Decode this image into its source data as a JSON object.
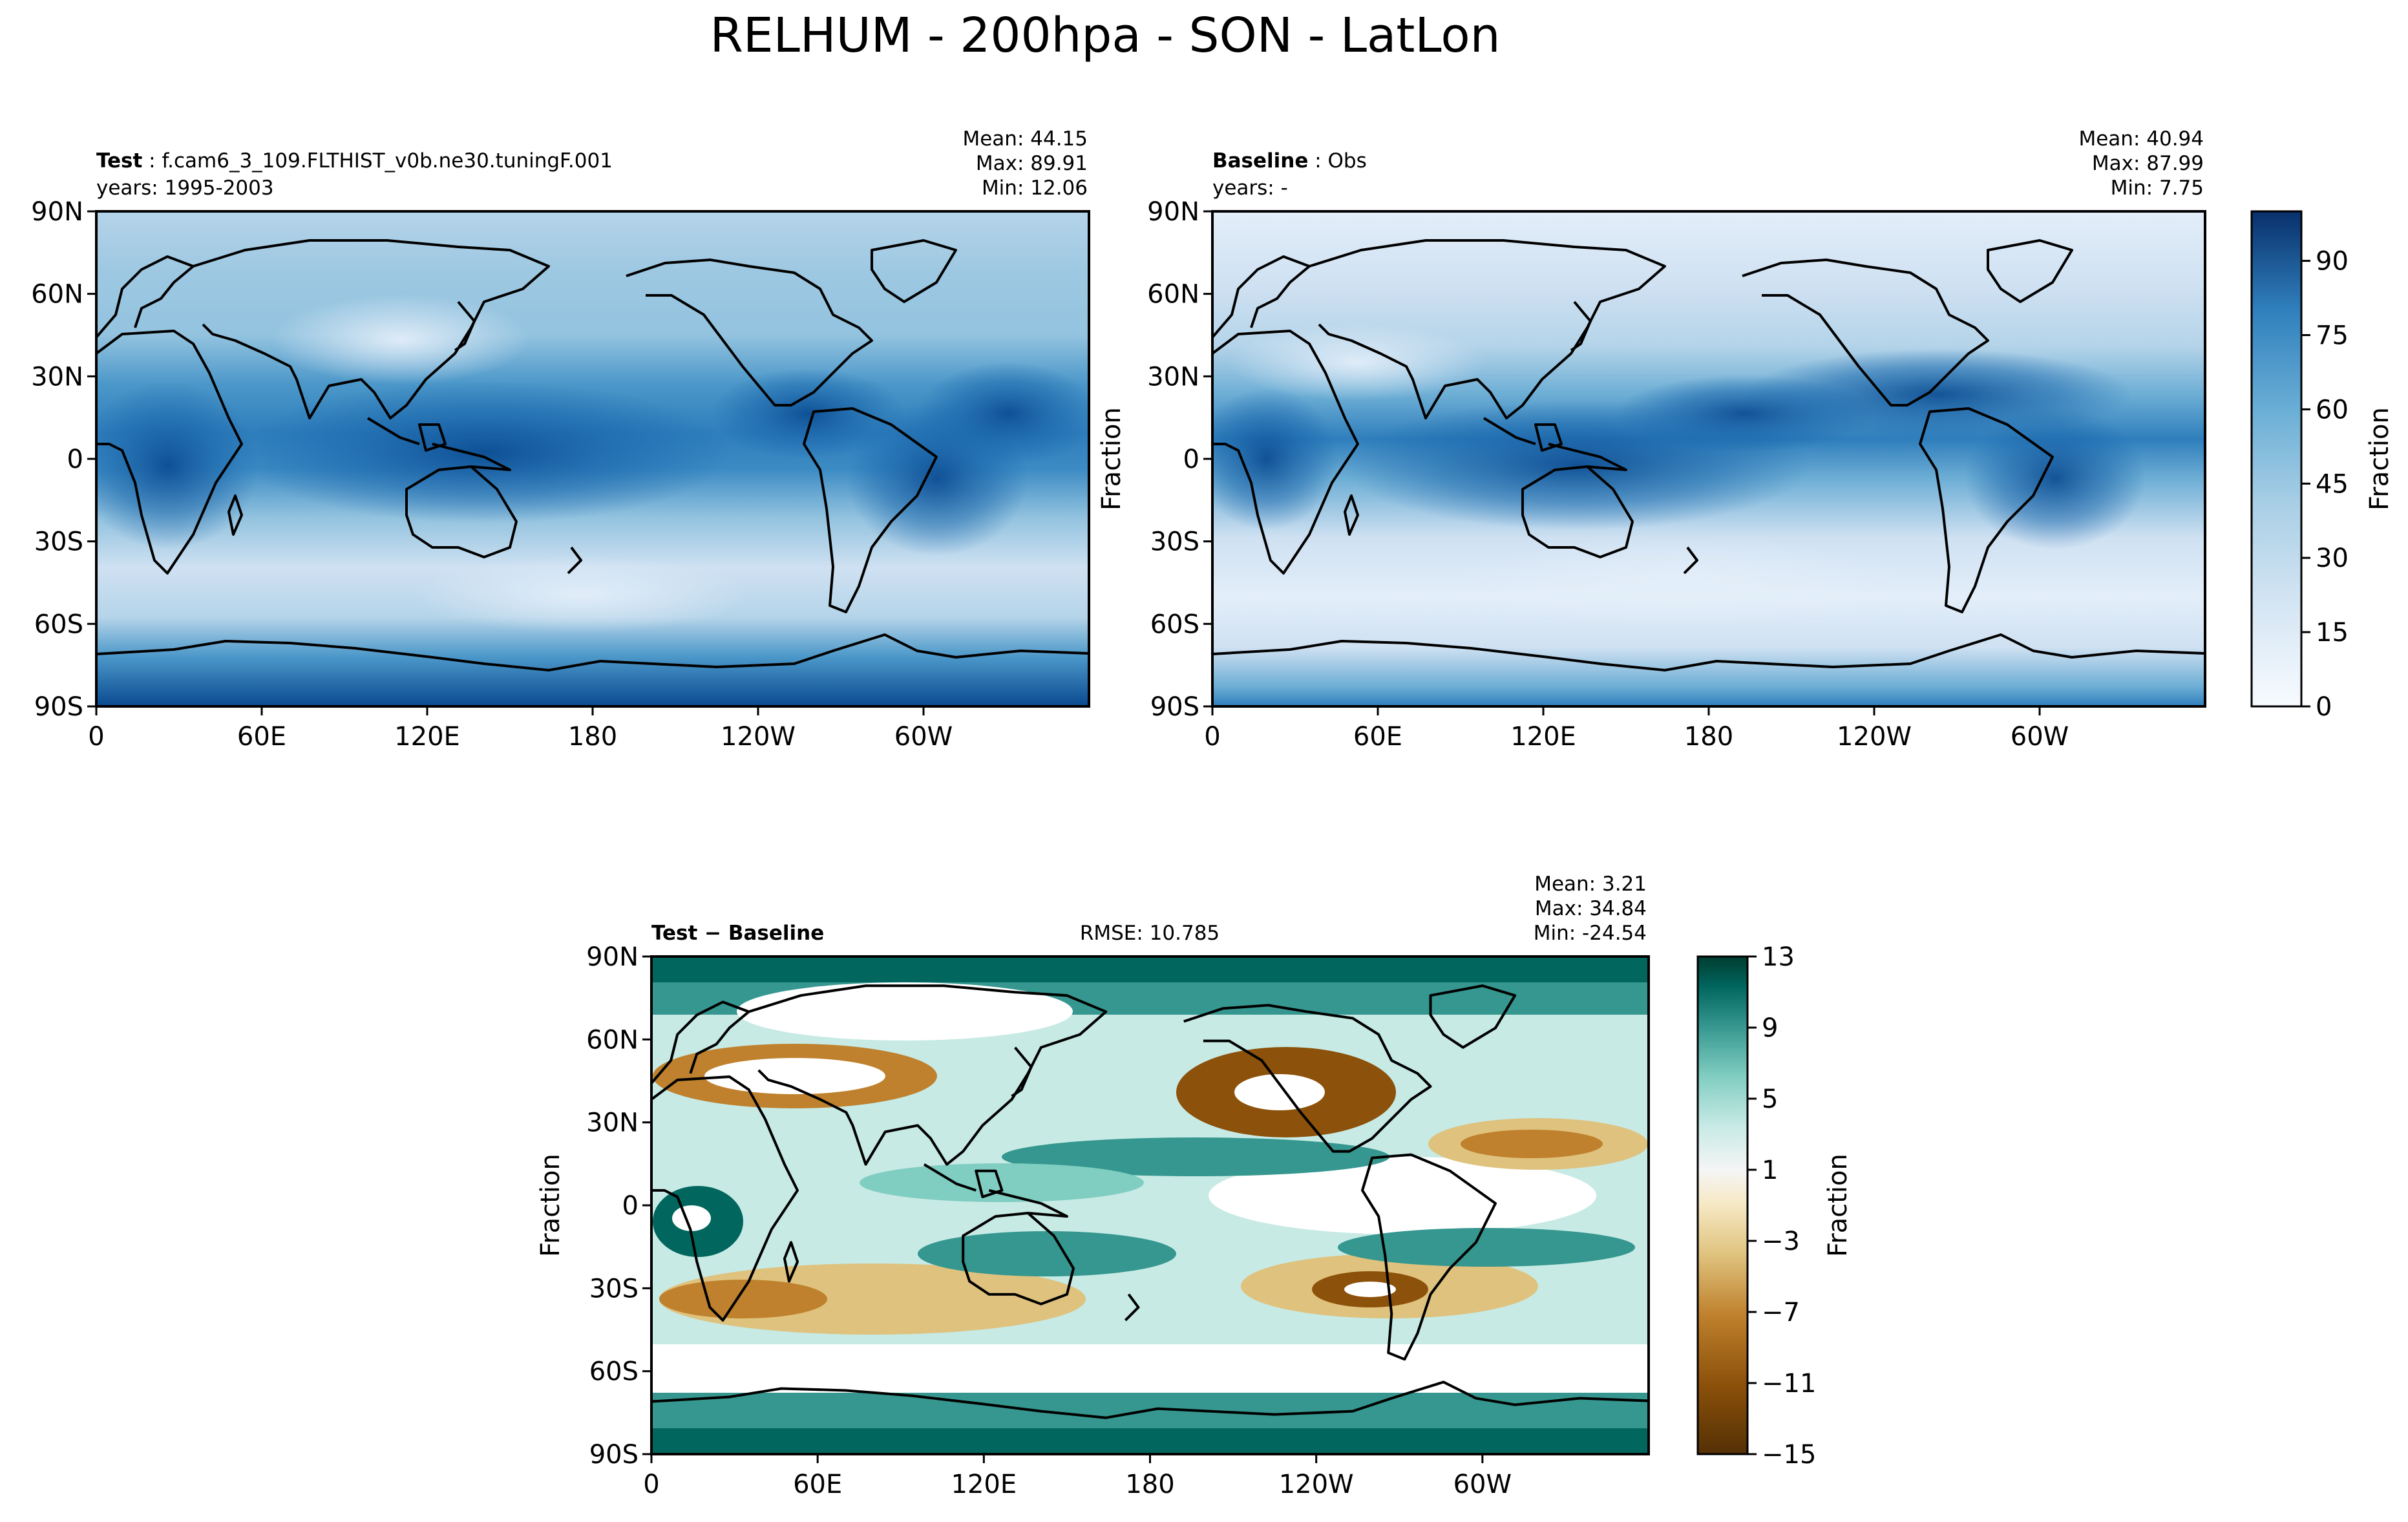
{
  "chart_data": [
    {
      "type": "heatmap",
      "panel": "test",
      "title_bold": "Test",
      "title_sep": " : ",
      "title_rest": "f.cam6_3_109.FLTHIST_v0b.ne30.tuningF.001",
      "years": "years: 1995-2003",
      "stats": {
        "mean": "Mean: 44.15",
        "max": "Max: 89.91",
        "min": "Min: 12.06"
      },
      "xticks": [
        "0",
        "60E",
        "120E",
        "180",
        "120W",
        "60W"
      ],
      "yticks": [
        "90N",
        "60N",
        "30N",
        "0",
        "30S",
        "60S",
        "90S"
      ],
      "ylabel": "",
      "colormap": "Blues",
      "clim": [
        0,
        100
      ]
    },
    {
      "type": "heatmap",
      "panel": "baseline",
      "title_bold": "Baseline",
      "title_sep": " : ",
      "title_rest": "Obs",
      "years": "years: -",
      "stats": {
        "mean": "Mean: 40.94",
        "max": "Max: 87.99",
        "min": "Min:  7.75"
      },
      "xticks": [
        "0",
        "60E",
        "120E",
        "180",
        "120W",
        "60W"
      ],
      "yticks": [
        "90N",
        "60N",
        "30N",
        "0",
        "30S",
        "60S",
        "90S"
      ],
      "ylabel": "Fraction",
      "colormap": "Blues",
      "clim": [
        0,
        100
      ],
      "colorbar": {
        "label": "Fraction",
        "ticks": [
          "0",
          "15",
          "30",
          "45",
          "60",
          "75",
          "90"
        ]
      }
    },
    {
      "type": "heatmap",
      "panel": "difference",
      "title_bold": "Test − Baseline",
      "rmse": "RMSE: 10.785",
      "stats": {
        "mean": "Mean:  3.21",
        "max": "Max: 34.84",
        "min": "Min: -24.54"
      },
      "xticks": [
        "0",
        "60E",
        "120E",
        "180",
        "120W",
        "60W"
      ],
      "yticks": [
        "90N",
        "60N",
        "30N",
        "0",
        "30S",
        "60S",
        "90S"
      ],
      "ylabel": "Fraction",
      "colormap": "BrBG",
      "clim": [
        -15,
        13
      ],
      "colorbar": {
        "label": "Fraction",
        "ticks": [
          "13",
          "9",
          "5",
          "1",
          "−3",
          "−7",
          "−11",
          "−15"
        ]
      }
    }
  ],
  "suptitle": "RELHUM - 200hpa - SON - LatLon",
  "colors": {
    "blues": [
      "#f7fbff",
      "#e3eef9",
      "#cfe1f2",
      "#b5d4e9",
      "#93c3df",
      "#6daed5",
      "#4b97c9",
      "#2f7ebc",
      "#1864aa",
      "#0a4a90",
      "#08306b"
    ],
    "brbg": [
      "#543005",
      "#8c510a",
      "#bf812d",
      "#dfc27d",
      "#f6e8c3",
      "#f5f5f5",
      "#c7eae5",
      "#80cdc1",
      "#35978f",
      "#01665e",
      "#003c30"
    ]
  }
}
